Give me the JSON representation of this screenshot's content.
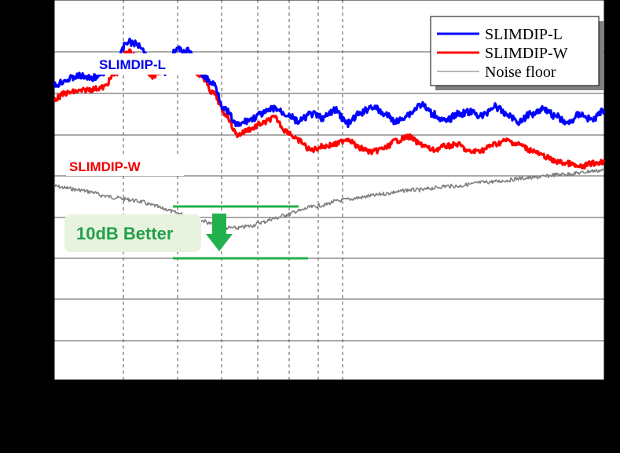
{
  "chart_data": {
    "type": "line",
    "title": "",
    "xlabel": "",
    "ylabel": "",
    "xscale": "log",
    "grid": true,
    "legend_placement": "top-right",
    "colors": {
      "background": "#000000",
      "plot_area": "#ffffff",
      "grid": "#555555",
      "slimdip_l": "#0000ff",
      "slimdip_w": "#ff0000",
      "noise_floor": "#808080",
      "better_accent": "#22b14c",
      "better_bg": "#e8f3df"
    },
    "series": [
      {
        "name": "SLIMDIP-L",
        "color": "#0000ff",
        "y": [
          0.225,
          0.21,
          0.2,
          0.205,
          0.195,
          0.17,
          0.11,
          0.118,
          0.18,
          0.19,
          0.13,
          0.135,
          0.195,
          0.22,
          0.29,
          0.33,
          0.315,
          0.3,
          0.285,
          0.3,
          0.32,
          0.3,
          0.31,
          0.29,
          0.325,
          0.3,
          0.28,
          0.3,
          0.32,
          0.3,
          0.275,
          0.3,
          0.32,
          0.3,
          0.295,
          0.305,
          0.28,
          0.3,
          0.32,
          0.3,
          0.285,
          0.305,
          0.325,
          0.3,
          0.315,
          0.29
        ]
      },
      {
        "name": "SLIMDIP-W",
        "color": "#ff0000",
        "y": [
          0.26,
          0.245,
          0.24,
          0.235,
          0.23,
          0.195,
          0.135,
          0.15,
          0.2,
          0.185,
          0.16,
          0.16,
          0.2,
          0.245,
          0.3,
          0.355,
          0.34,
          0.325,
          0.31,
          0.345,
          0.37,
          0.395,
          0.385,
          0.38,
          0.365,
          0.39,
          0.4,
          0.39,
          0.37,
          0.36,
          0.38,
          0.395,
          0.385,
          0.38,
          0.4,
          0.395,
          0.38,
          0.37,
          0.38,
          0.395,
          0.41,
          0.425,
          0.43,
          0.44,
          0.43,
          0.425
        ]
      },
      {
        "name": "Noise floor",
        "color": "#808080",
        "y": [
          0.49,
          0.495,
          0.5,
          0.505,
          0.515,
          0.52,
          0.525,
          0.53,
          0.54,
          0.55,
          0.56,
          0.57,
          0.58,
          0.59,
          0.6,
          0.6,
          0.595,
          0.585,
          0.575,
          0.565,
          0.555,
          0.545,
          0.54,
          0.53,
          0.525,
          0.52,
          0.515,
          0.51,
          0.505,
          0.5,
          0.5,
          0.495,
          0.49,
          0.49,
          0.485,
          0.48,
          0.478,
          0.475,
          0.47,
          0.468,
          0.465,
          0.46,
          0.458,
          0.455,
          0.45,
          0.448
        ]
      }
    ],
    "legend": [
      "SLIMDIP-L",
      "SLIMDIP-W",
      "Noise floor"
    ],
    "annotations": {
      "label_l": "SLIMDIP-L",
      "label_w": "SLIMDIP-W",
      "better": "10dB Better"
    }
  }
}
